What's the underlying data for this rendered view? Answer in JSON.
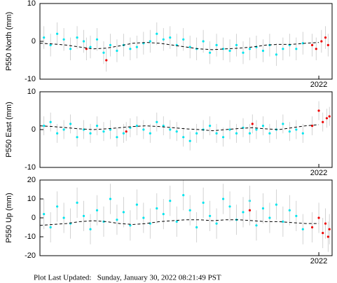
{
  "chart_data": [
    {
      "type": "scatter",
      "y_label": "P550 North (mm)",
      "xlim": [
        2019.9,
        2022.1
      ],
      "xticks": [
        2022
      ],
      "ylim": [
        -10,
        10
      ],
      "yticks": [
        -10,
        0,
        10
      ],
      "error_color": "#c8c8c8",
      "series": [
        {
          "color": "#00e5ee",
          "error": 3,
          "x": [
            2019.93,
            2019.98,
            2020.03,
            2020.08,
            2020.13,
            2020.18,
            2020.23,
            2020.28,
            2020.33,
            2020.38,
            2020.43,
            2020.48,
            2020.53,
            2020.58,
            2020.63,
            2020.68,
            2020.73,
            2020.78,
            2020.83,
            2020.88,
            2020.93,
            2020.98,
            2021.03,
            2021.08,
            2021.13,
            2021.18,
            2021.23,
            2021.28,
            2021.33,
            2021.38,
            2021.43,
            2021.48,
            2021.53,
            2021.58,
            2021.63,
            2021.68,
            2021.73,
            2021.78,
            2021.83,
            2021.88
          ],
          "values": [
            1,
            -1,
            2,
            0.5,
            -2,
            1,
            0,
            -1.5,
            0.5,
            -3,
            -1,
            -2.5,
            -1,
            -2,
            -1.5,
            -0.5,
            0,
            2,
            0.5,
            1,
            -1,
            0.5,
            -1.5,
            -2,
            0,
            -3,
            -1,
            -2,
            -2.5,
            -1,
            -3,
            -2,
            -1.5,
            -2.5,
            -1,
            -3.5,
            -2,
            -1,
            -2,
            -0.5
          ]
        },
        {
          "color": "#ee0000",
          "error": 3,
          "x": [
            2020.25,
            2020.4,
            2021.95,
            2021.98,
            2022.02,
            2022.05,
            2022.07
          ],
          "values": [
            -2,
            -5,
            -1,
            -2,
            0,
            1,
            -1
          ]
        },
        {
          "type": "line",
          "color": "#000000",
          "dashed": true,
          "x": [
            2019.9,
            2020.0,
            2020.1,
            2020.2,
            2020.3,
            2020.4,
            2020.5,
            2020.6,
            2020.7,
            2020.8,
            2020.9,
            2021.0,
            2021.1,
            2021.2,
            2021.3,
            2021.4,
            2021.5,
            2021.6,
            2021.7,
            2021.8,
            2021.9,
            2022.0
          ],
          "values": [
            -0.5,
            -0.7,
            -1,
            -1.5,
            -2,
            -1.8,
            -1.2,
            -0.5,
            -0.3,
            -0.5,
            -1,
            -1.5,
            -2,
            -2.2,
            -2,
            -1.8,
            -1.5,
            -1,
            -0.8,
            -0.8,
            -0.5,
            -0.3
          ]
        }
      ]
    },
    {
      "type": "scatter",
      "y_label": "P550 East (mm)",
      "xlim": [
        2019.9,
        2022.1
      ],
      "xticks": [
        2022
      ],
      "ylim": [
        -10,
        10
      ],
      "yticks": [
        -10,
        0,
        10
      ],
      "error_color": "#c8c8c8",
      "series": [
        {
          "color": "#00e5ee",
          "error": 2.5,
          "x": [
            2019.93,
            2019.98,
            2020.03,
            2020.08,
            2020.13,
            2020.18,
            2020.23,
            2020.28,
            2020.33,
            2020.38,
            2020.43,
            2020.48,
            2020.53,
            2020.58,
            2020.63,
            2020.68,
            2020.73,
            2020.78,
            2020.83,
            2020.88,
            2020.93,
            2020.98,
            2021.03,
            2021.08,
            2021.13,
            2021.18,
            2021.23,
            2021.28,
            2021.33,
            2021.38,
            2021.43,
            2021.48,
            2021.53,
            2021.58,
            2021.63,
            2021.68,
            2021.73,
            2021.78,
            2021.83,
            2021.88
          ],
          "values": [
            1,
            2,
            -1,
            0,
            1.5,
            -2,
            0,
            -1,
            1,
            -0.5,
            0,
            -2,
            -1,
            0.5,
            1,
            0,
            -1,
            2,
            1,
            0,
            -0.5,
            -2,
            -3,
            -1,
            0,
            1,
            -1,
            -2,
            0,
            -1,
            0.5,
            -1,
            0,
            1,
            -1,
            0,
            1.5,
            -0.5,
            0,
            -1
          ]
        },
        {
          "color": "#ee0000",
          "error": 2.5,
          "x": [
            2020.55,
            2021.5,
            2021.95,
            2022.0,
            2022.03,
            2022.06,
            2022.08
          ],
          "values": [
            -0.5,
            1.5,
            1,
            5,
            2,
            3,
            3.5
          ]
        },
        {
          "type": "line",
          "color": "#000000",
          "dashed": true,
          "x": [
            2019.9,
            2020.0,
            2020.1,
            2020.2,
            2020.3,
            2020.4,
            2020.5,
            2020.6,
            2020.7,
            2020.8,
            2020.9,
            2021.0,
            2021.1,
            2021.2,
            2021.3,
            2021.4,
            2021.5,
            2021.6,
            2021.7,
            2021.8,
            2021.9,
            2022.0
          ],
          "values": [
            1,
            0.8,
            0.5,
            0.2,
            0,
            0.2,
            0.5,
            0.8,
            1,
            0.8,
            0.5,
            0.2,
            0,
            -0.3,
            0,
            0.3,
            0.5,
            0.2,
            0,
            0.5,
            1,
            1.3
          ]
        }
      ]
    },
    {
      "type": "scatter",
      "y_label": "P550 Up (mm)",
      "xlim": [
        2019.9,
        2022.1
      ],
      "xticks": [
        2022
      ],
      "ylim": [
        -20,
        20
      ],
      "yticks": [
        -20,
        -10,
        0,
        10,
        20
      ],
      "error_color": "#c8c8c8",
      "series": [
        {
          "color": "#00e5ee",
          "error": 8,
          "x": [
            2019.93,
            2019.98,
            2020.03,
            2020.08,
            2020.13,
            2020.18,
            2020.23,
            2020.28,
            2020.33,
            2020.38,
            2020.43,
            2020.48,
            2020.53,
            2020.58,
            2020.63,
            2020.68,
            2020.73,
            2020.78,
            2020.83,
            2020.88,
            2020.93,
            2020.98,
            2021.03,
            2021.08,
            2021.13,
            2021.18,
            2021.23,
            2021.28,
            2021.33,
            2021.38,
            2021.43,
            2021.48,
            2021.53,
            2021.58,
            2021.63,
            2021.68,
            2021.73,
            2021.78,
            2021.83,
            2021.88
          ],
          "values": [
            2,
            -5,
            6,
            0,
            -3,
            8,
            1,
            -6,
            4,
            -2,
            10,
            -1,
            3,
            -4,
            7,
            0,
            -3,
            5,
            2,
            9,
            -2,
            12,
            4,
            -5,
            8,
            1,
            -3,
            10,
            6,
            -1,
            3,
            9,
            -4,
            5,
            0,
            7,
            -2,
            4,
            1,
            -6
          ]
        },
        {
          "color": "#ee0000",
          "error": 8,
          "x": [
            2021.48,
            2021.95,
            2022.0,
            2022.03,
            2022.05,
            2022.07,
            2022.08
          ],
          "values": [
            4,
            -5,
            0,
            -8,
            -3,
            -10,
            -6
          ]
        },
        {
          "type": "line",
          "color": "#000000",
          "dashed": true,
          "x": [
            2019.9,
            2020.0,
            2020.1,
            2020.2,
            2020.3,
            2020.4,
            2020.5,
            2020.6,
            2020.7,
            2020.8,
            2020.9,
            2021.0,
            2021.1,
            2021.2,
            2021.3,
            2021.4,
            2021.5,
            2021.6,
            2021.7,
            2021.8,
            2021.9,
            2022.0
          ],
          "values": [
            -4,
            -3.5,
            -3,
            -2,
            -1.5,
            -2,
            -3,
            -3.5,
            -3,
            -2,
            -1.5,
            -1,
            -1,
            -1.5,
            -1,
            -1,
            -1.5,
            -2,
            -2,
            -2.5,
            -3,
            -3
          ]
        }
      ]
    }
  ],
  "footer": "Plot Last Updated:   Sunday, January 30, 2022 08:21:49 PST"
}
